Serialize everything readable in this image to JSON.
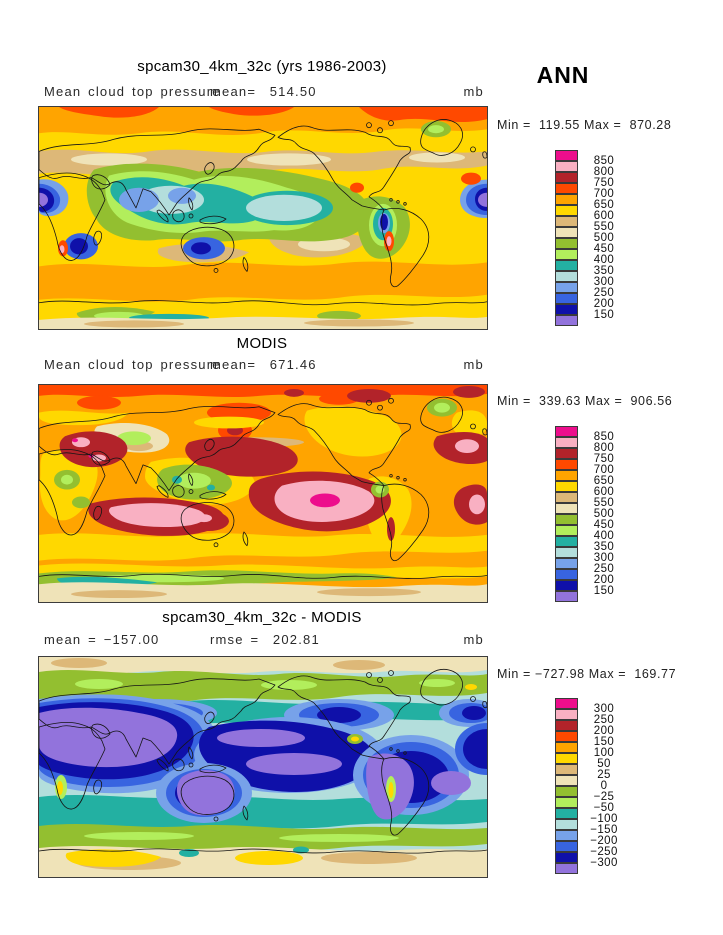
{
  "page": {
    "background": "#ffffff"
  },
  "header": {
    "season_label": "ANN"
  },
  "palette": [
    "#ED0E8C",
    "#F9B0C2",
    "#B2232A",
    "#FF4900",
    "#FFA400",
    "#FFD800",
    "#DDB878",
    "#EFE3B8",
    "#93BF30",
    "#B2EE5C",
    "#23B0A2",
    "#B3DEDC",
    "#77A2E9",
    "#3864E0",
    "#0F10A9",
    "#9273DC"
  ],
  "chart_data": [
    {
      "type": "heatmap",
      "chart_kind": "filled-contour global latitude-longitude map",
      "title": "spcam30_4km_32c (yrs 1986-2003)",
      "variable": "Mean cloud top pressure",
      "mean_text": "mean=  514.50",
      "units": "mb",
      "mean": 514.5,
      "min": 119.55,
      "max": 870.28,
      "stats_text": "Min =  119.55 Max =  870.28",
      "legend_position": "right",
      "legend_levels": [
        850,
        800,
        750,
        700,
        650,
        600,
        550,
        500,
        450,
        400,
        350,
        300,
        250,
        200,
        150
      ],
      "legend_labels": [
        "850",
        "800",
        "750",
        "700",
        "650",
        "600",
        "550",
        "500",
        "450",
        "400",
        "350",
        "300",
        "250",
        "200",
        "150"
      ]
    },
    {
      "type": "heatmap",
      "chart_kind": "filled-contour global latitude-longitude map",
      "title": "MODIS",
      "variable": "Mean cloud top pressure",
      "mean_text": "mean=  671.46",
      "units": "mb",
      "mean": 671.46,
      "min": 339.63,
      "max": 906.56,
      "stats_text": "Min =  339.63 Max =  906.56",
      "legend_position": "right",
      "legend_levels": [
        850,
        800,
        750,
        700,
        650,
        600,
        550,
        500,
        450,
        400,
        350,
        300,
        250,
        200,
        150
      ],
      "legend_labels": [
        "850",
        "800",
        "750",
        "700",
        "650",
        "600",
        "550",
        "500",
        "450",
        "400",
        "350",
        "300",
        "250",
        "200",
        "150"
      ]
    },
    {
      "type": "heatmap",
      "chart_kind": "filled-contour global latitude-longitude difference map",
      "title": "spcam30_4km_32c - MODIS",
      "mean_text": "mean = −157.00",
      "rmse_text": "rmse =  202.81",
      "units": "mb",
      "mean": -157.0,
      "rmse": 202.81,
      "min": -727.98,
      "max": 169.77,
      "stats_text": "Min = −727.98 Max =  169.77",
      "legend_position": "right",
      "legend_levels": [
        300,
        250,
        200,
        150,
        100,
        50,
        25,
        0,
        -25,
        -50,
        -100,
        -150,
        -200,
        -250,
        -300
      ],
      "legend_labels": [
        "300",
        "250",
        "200",
        "150",
        "100",
        "50",
        "25",
        "0",
        "−25",
        "−50",
        "−100",
        "−150",
        "−200",
        "−250",
        "−300"
      ]
    }
  ]
}
